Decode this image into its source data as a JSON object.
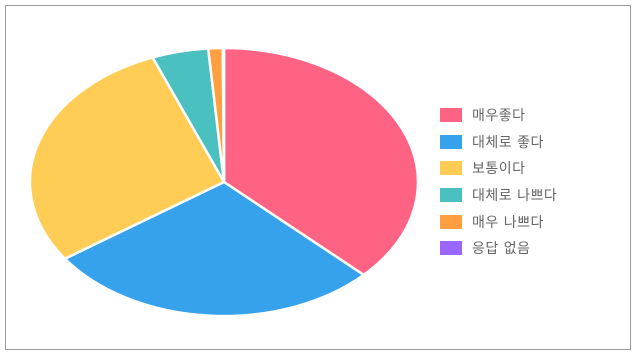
{
  "chart_data": {
    "type": "pie",
    "title": "",
    "labels": [
      "매우좋다",
      "대체로 좋다",
      "보통이다",
      "대체로 나쁘다",
      "매우 나쁘다",
      "응답 없음"
    ],
    "values": [
      37.2,
      28.1,
      28.7,
      4.7,
      1.2,
      0.1
    ],
    "unit": "%",
    "colors": [
      "#ff6384",
      "#36a2eb",
      "#ffcd56",
      "#4bc0c0",
      "#ff9f40",
      "#9966ff"
    ],
    "start_angle_deg": 0,
    "direction": "clockwise",
    "legend_position": "right",
    "slice_border_color": "#ffffff"
  }
}
